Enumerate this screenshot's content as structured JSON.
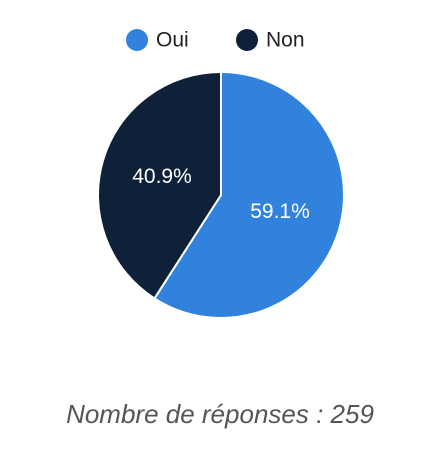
{
  "chart_data": {
    "type": "pie",
    "categories": [
      "Oui",
      "Non"
    ],
    "values": [
      59.1,
      40.9
    ],
    "value_labels": [
      "59.1%",
      "40.9%"
    ],
    "colors": [
      "#3182dc",
      "#0e2139"
    ],
    "legend": "top",
    "footnote": "Nombre de réponses : 259"
  }
}
